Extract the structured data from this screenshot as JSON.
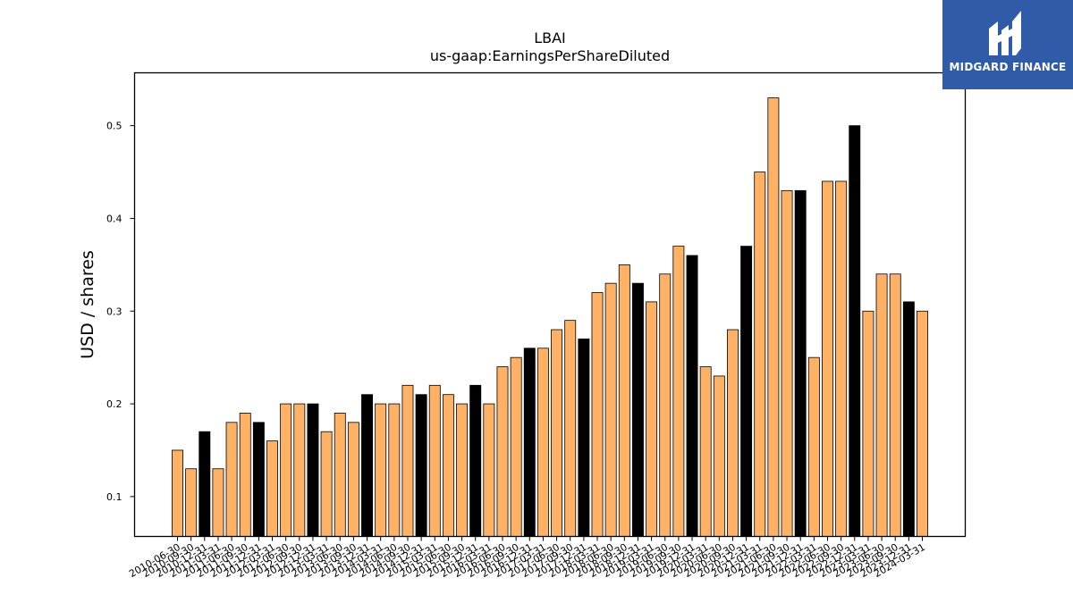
{
  "chart_data": {
    "type": "bar",
    "title": "LBAI",
    "subtitle": "us-gaap:EarningsPerShareDiluted",
    "xlabel": "",
    "ylabel": "USD / shares",
    "ylim": [
      0.057,
      0.557
    ],
    "yticks": [
      0.1,
      0.2,
      0.3,
      0.4,
      0.5
    ],
    "grid": false,
    "bar_color": "#ffb266",
    "highlight_color": "#000000",
    "edge_color": "#000000",
    "bars": [
      {
        "label": "2010-06-30",
        "value": 0.15,
        "highlight": false
      },
      {
        "label": "2010-09-30",
        "value": 0.13,
        "highlight": false
      },
      {
        "label": "2010-12-31",
        "value": 0.17,
        "highlight": true
      },
      {
        "label": "2011-03-31",
        "value": 0.13,
        "highlight": false
      },
      {
        "label": "2011-06-30",
        "value": 0.18,
        "highlight": false
      },
      {
        "label": "2011-09-30",
        "value": 0.19,
        "highlight": false
      },
      {
        "label": "2011-12-31",
        "value": 0.18,
        "highlight": true
      },
      {
        "label": "2012-03-31",
        "value": 0.16,
        "highlight": false
      },
      {
        "label": "2012-06-30",
        "value": 0.2,
        "highlight": false
      },
      {
        "label": "2012-09-30",
        "value": 0.2,
        "highlight": false
      },
      {
        "label": "2012-12-31",
        "value": 0.2,
        "highlight": true
      },
      {
        "label": "2013-03-31",
        "value": 0.17,
        "highlight": false
      },
      {
        "label": "2013-06-30",
        "value": 0.19,
        "highlight": false
      },
      {
        "label": "2013-09-30",
        "value": 0.18,
        "highlight": false
      },
      {
        "label": "2013-12-31",
        "value": 0.21,
        "highlight": true
      },
      {
        "label": "2014-03-31",
        "value": 0.2,
        "highlight": false
      },
      {
        "label": "2014-06-30",
        "value": 0.2,
        "highlight": false
      },
      {
        "label": "2014-09-30",
        "value": 0.22,
        "highlight": false
      },
      {
        "label": "2014-12-31",
        "value": 0.21,
        "highlight": true
      },
      {
        "label": "2015-03-31",
        "value": 0.22,
        "highlight": false
      },
      {
        "label": "2015-06-30",
        "value": 0.21,
        "highlight": false
      },
      {
        "label": "2015-09-30",
        "value": 0.2,
        "highlight": false
      },
      {
        "label": "2015-12-31",
        "value": 0.22,
        "highlight": true
      },
      {
        "label": "2016-03-31",
        "value": 0.2,
        "highlight": false
      },
      {
        "label": "2016-06-30",
        "value": 0.24,
        "highlight": false
      },
      {
        "label": "2016-09-30",
        "value": 0.25,
        "highlight": false
      },
      {
        "label": "2016-12-31",
        "value": 0.26,
        "highlight": true
      },
      {
        "label": "2017-03-31",
        "value": 0.26,
        "highlight": false
      },
      {
        "label": "2017-06-30",
        "value": 0.28,
        "highlight": false
      },
      {
        "label": "2017-09-30",
        "value": 0.29,
        "highlight": false
      },
      {
        "label": "2017-12-31",
        "value": 0.27,
        "highlight": true
      },
      {
        "label": "2018-03-31",
        "value": 0.32,
        "highlight": false
      },
      {
        "label": "2018-06-30",
        "value": 0.33,
        "highlight": false
      },
      {
        "label": "2018-09-30",
        "value": 0.35,
        "highlight": false
      },
      {
        "label": "2018-12-31",
        "value": 0.33,
        "highlight": true
      },
      {
        "label": "2019-03-31",
        "value": 0.31,
        "highlight": false
      },
      {
        "label": "2019-06-30",
        "value": 0.34,
        "highlight": false
      },
      {
        "label": "2019-09-30",
        "value": 0.37,
        "highlight": false
      },
      {
        "label": "2019-12-31",
        "value": 0.36,
        "highlight": true
      },
      {
        "label": "2020-03-31",
        "value": 0.24,
        "highlight": false
      },
      {
        "label": "2020-06-30",
        "value": 0.23,
        "highlight": false
      },
      {
        "label": "2020-09-30",
        "value": 0.28,
        "highlight": false
      },
      {
        "label": "2020-12-31",
        "value": 0.37,
        "highlight": true
      },
      {
        "label": "2021-03-31",
        "value": 0.45,
        "highlight": false
      },
      {
        "label": "2021-06-30",
        "value": 0.53,
        "highlight": false
      },
      {
        "label": "2021-09-30",
        "value": 0.43,
        "highlight": false
      },
      {
        "label": "2021-12-31",
        "value": 0.43,
        "highlight": true
      },
      {
        "label": "2022-03-31",
        "value": 0.25,
        "highlight": false
      },
      {
        "label": "2022-06-30",
        "value": 0.44,
        "highlight": false
      },
      {
        "label": "2022-09-30",
        "value": 0.44,
        "highlight": false
      },
      {
        "label": "2022-12-31",
        "value": 0.5,
        "highlight": true
      },
      {
        "label": "2023-03-31",
        "value": 0.3,
        "highlight": false
      },
      {
        "label": "2023-06-30",
        "value": 0.34,
        "highlight": false
      },
      {
        "label": "2023-09-30",
        "value": 0.34,
        "highlight": false
      },
      {
        "label": "2023-12-31",
        "value": 0.31,
        "highlight": true
      },
      {
        "label": "2024-03-31",
        "value": 0.3,
        "highlight": false
      }
    ]
  },
  "logo": {
    "name": "MIDGARD FINANCE",
    "icon": "midgard-m-icon",
    "background": "#2f5ba9"
  }
}
